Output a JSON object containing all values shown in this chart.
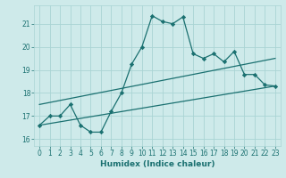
{
  "xlabel": "Humidex (Indice chaleur)",
  "bg_color": "#ceeaea",
  "line_color": "#1a7070",
  "grid_color": "#aad4d4",
  "xlim": [
    -0.5,
    23.5
  ],
  "ylim": [
    15.7,
    21.8
  ],
  "yticks": [
    16,
    17,
    18,
    19,
    20,
    21
  ],
  "xticks": [
    0,
    1,
    2,
    3,
    4,
    5,
    6,
    7,
    8,
    9,
    10,
    11,
    12,
    13,
    14,
    15,
    16,
    17,
    18,
    19,
    20,
    21,
    22,
    23
  ],
  "main_x": [
    0,
    1,
    2,
    3,
    4,
    5,
    6,
    7,
    8,
    9,
    10,
    11,
    12,
    13,
    14,
    15,
    16,
    17,
    18,
    19,
    20,
    21,
    22,
    23
  ],
  "main_y": [
    16.6,
    17.0,
    17.0,
    17.5,
    16.6,
    16.3,
    16.3,
    17.2,
    18.0,
    19.25,
    20.0,
    21.35,
    21.1,
    21.0,
    21.3,
    19.7,
    19.5,
    19.7,
    19.35,
    19.8,
    18.8,
    18.8,
    18.35,
    18.3
  ],
  "trend1_x": [
    0,
    23
  ],
  "trend1_y": [
    16.6,
    18.3
  ],
  "trend2_x": [
    0,
    23
  ],
  "trend2_y": [
    17.5,
    19.5
  ]
}
